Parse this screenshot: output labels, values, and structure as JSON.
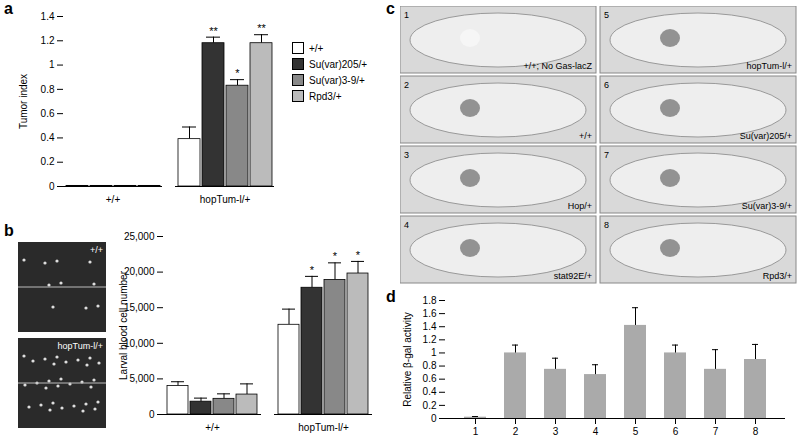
{
  "chart_data": [
    {
      "type": "bar",
      "title": "a",
      "ylabel": "Tumor index",
      "categories": [
        "+/+",
        "hopTum-l/+"
      ],
      "series": [
        {
          "name": "+/+",
          "color": "#ffffff",
          "values": [
            0.005,
            0.39
          ],
          "errors": [
            0,
            0.1
          ],
          "significance": [
            "",
            ""
          ]
        },
        {
          "name": "Su(var)205/+",
          "color": "#333333",
          "values": [
            0.005,
            1.18
          ],
          "errors": [
            0,
            0.05
          ],
          "significance": [
            "",
            "**"
          ]
        },
        {
          "name": "Su(var)3-9/+",
          "color": "#888888",
          "values": [
            0.005,
            0.83
          ],
          "errors": [
            0,
            0.05
          ],
          "significance": [
            "",
            "*"
          ]
        },
        {
          "name": "Rpd3/+",
          "color": "#bbbbbb",
          "values": [
            0.005,
            1.18
          ],
          "errors": [
            0,
            0.07
          ],
          "significance": [
            "",
            "**"
          ]
        }
      ],
      "ylim": [
        0,
        1.4
      ],
      "yticks": [
        0,
        0.2,
        0.4,
        0.6,
        0.8,
        1,
        1.2,
        1.4
      ],
      "legend": "right"
    },
    {
      "type": "bar",
      "title": "b",
      "ylabel": "Larval blood cell number",
      "annotations": [
        "+/+",
        "hopTum-l/+"
      ],
      "categories": [
        "+/+",
        "hopTum-l/+"
      ],
      "series": [
        {
          "name": "+/+",
          "color": "#ffffff",
          "values": [
            4000,
            12600
          ],
          "errors": [
            600,
            2200
          ],
          "significance": [
            "",
            ""
          ]
        },
        {
          "name": "Su(var)205/+",
          "color": "#333333",
          "values": [
            1800,
            17800
          ],
          "errors": [
            500,
            1600
          ],
          "significance": [
            "",
            "*"
          ]
        },
        {
          "name": "Su(var)3-9/+",
          "color": "#888888",
          "values": [
            2200,
            18900
          ],
          "errors": [
            700,
            2400
          ],
          "significance": [
            "",
            "*"
          ]
        },
        {
          "name": "Rpd3/+",
          "color": "#bbbbbb",
          "values": [
            2800,
            19800
          ],
          "errors": [
            1500,
            1700
          ],
          "significance": [
            "",
            "*"
          ]
        }
      ],
      "ylim": [
        0,
        25000
      ],
      "yticks": [
        0,
        {
          "value": 5000,
          "label": "5,000"
        },
        {
          "value": 10000,
          "label": "10,000"
        },
        {
          "value": 15000,
          "label": "15,000"
        },
        {
          "value": 20000,
          "label": "20,000"
        },
        {
          "value": 25000,
          "label": "25,000"
        }
      ]
    },
    {
      "type": "bar",
      "title": "d",
      "ylabel": "Relative β-gal activity",
      "categories": [
        "1",
        "2",
        "3",
        "4",
        "5",
        "6",
        "7",
        "8"
      ],
      "values": [
        0.02,
        1.0,
        0.75,
        0.67,
        1.42,
        1.0,
        0.75,
        0.9
      ],
      "errors": [
        0.01,
        0.12,
        0.17,
        0.15,
        0.27,
        0.12,
        0.3,
        0.23
      ],
      "color": "#aaaaaa",
      "ylim": [
        0,
        1.8
      ],
      "yticks": [
        0,
        0.2,
        0.4,
        0.6,
        0.8,
        1,
        1.2,
        1.4,
        1.6,
        1.8
      ]
    }
  ],
  "image_panel": {
    "title": "c",
    "images": [
      {
        "number": "1",
        "label": "+/+; No Gas-lacZ"
      },
      {
        "number": "5",
        "label": "hopTum-l/+"
      },
      {
        "number": "2",
        "label": "+/+"
      },
      {
        "number": "6",
        "label": "Su(var)205/+"
      },
      {
        "number": "3",
        "label": "Hop/+"
      },
      {
        "number": "7",
        "label": "Su(var)3-9/+"
      },
      {
        "number": "4",
        "label": "stat92E/+"
      },
      {
        "number": "8",
        "label": "Rpd3/+"
      }
    ]
  }
}
